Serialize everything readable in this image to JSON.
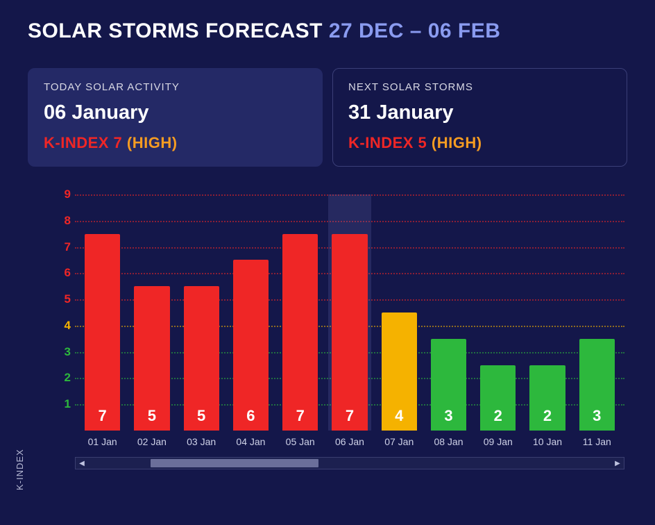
{
  "header": {
    "title_prefix": "SOLAR STORMS FORECAST ",
    "date_range": "27 DEC – 06 FEB"
  },
  "cards": {
    "today": {
      "label": "TODAY SOLAR ACTIVITY",
      "date": "06 January",
      "kindex_label": "K-INDEX 7",
      "level": "(HIGH)"
    },
    "next": {
      "label": "NEXT SOLAR STORMS",
      "date": "31 January",
      "kindex_label": "K-INDEX 5",
      "level": "(HIGH)"
    }
  },
  "chart": {
    "type": "bar",
    "ylabel": "K-INDEX",
    "ymin": 0,
    "ymax": 9,
    "yticks": [
      {
        "v": 1,
        "color": "#2db83d"
      },
      {
        "v": 2,
        "color": "#2db83d"
      },
      {
        "v": 3,
        "color": "#2db83d"
      },
      {
        "v": 4,
        "color": "#f5b200"
      },
      {
        "v": 5,
        "color": "#ef2626"
      },
      {
        "v": 6,
        "color": "#ef2626"
      },
      {
        "v": 7,
        "color": "#ef2626"
      },
      {
        "v": 8,
        "color": "#ef2626"
      },
      {
        "v": 9,
        "color": "#ef2626"
      }
    ],
    "gridline_style": "dotted",
    "background_color": "#14174a",
    "categories": [
      "01 Jan",
      "02 Jan",
      "03 Jan",
      "04 Jan",
      "05 Jan",
      "06 Jan",
      "07 Jan",
      "08 Jan",
      "09 Jan",
      "10 Jan",
      "11 Jan"
    ],
    "values": [
      7,
      5,
      5,
      6,
      7,
      7,
      4,
      3,
      2,
      2,
      3
    ],
    "bar_heights": [
      7.5,
      5.5,
      5.5,
      6.5,
      7.5,
      7.5,
      4.5,
      3.5,
      2.5,
      2.5,
      3.5
    ],
    "bar_colors": [
      "#ef2626",
      "#ef2626",
      "#ef2626",
      "#ef2626",
      "#ef2626",
      "#ef2626",
      "#f5b200",
      "#2db83d",
      "#2db83d",
      "#2db83d",
      "#2db83d"
    ],
    "value_labels": [
      "7",
      "5",
      "5",
      "6",
      "7",
      "7",
      "4",
      "3",
      "2",
      "2",
      "3"
    ],
    "value_label_color": "#ffffff",
    "value_label_fontsize": 22,
    "highlight_index": 5,
    "bar_width_ratio": 0.72,
    "xlabel_color": "#cfd2e8",
    "xlabel_fontsize": 14,
    "scroll": {
      "thumb_left_pct": 12,
      "thumb_width_pct": 32
    }
  },
  "colors": {
    "bg": "#14174a",
    "card_active_bg": "#242966",
    "card_border": "#3b3f78",
    "accent_blue": "#8a9bf0",
    "red": "#ef2626",
    "orange": "#f59c22",
    "yellow": "#f5b200",
    "green": "#2db83d"
  }
}
